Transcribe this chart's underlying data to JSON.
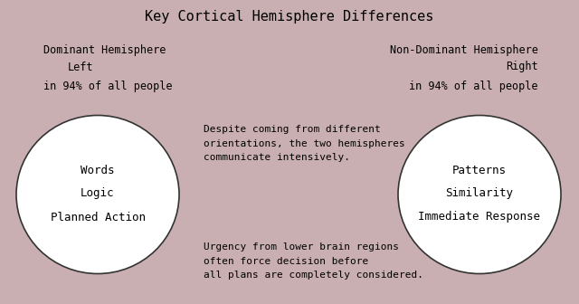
{
  "title": "Key Cortical Hemisphere Differences",
  "bg_color": "#c9afb1",
  "left_header1": "Dominant Hemisphere",
  "left_header2": "Left",
  "left_header3": "in 94% of all people",
  "right_header1": "Non-Dominant Hemisphere",
  "right_header2": "Right",
  "right_header3": "in 94% of all people",
  "left_circle_items": [
    "Words",
    "Logic",
    "Planned Action"
  ],
  "right_circle_items": [
    "Patterns",
    "Similarity",
    "Immediate Response"
  ],
  "top_center_text": "Despite coming from different\norientations, the two hemispheres\ncommunicate intensively.",
  "bottom_center_text": "Urgency from lower brain regions\noften force decision before\nall plans are completely considered.",
  "font_family": "DejaVu Sans Mono",
  "title_fontsize": 11,
  "header_fontsize": 8.5,
  "body_fontsize": 8,
  "circle_text_fontsize": 9
}
